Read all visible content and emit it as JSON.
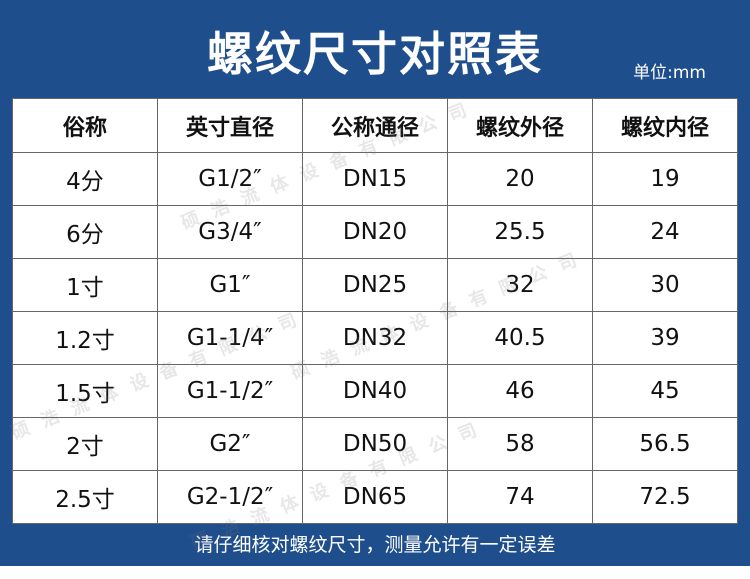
{
  "header": {
    "title": "螺纹尺寸对照表",
    "unit": "单位:mm"
  },
  "table": {
    "columns": [
      "俗称",
      "英寸直径",
      "公称通径",
      "螺纹外径",
      "螺纹内径"
    ],
    "rows": [
      [
        "4分",
        "G1/2″",
        "DN15",
        "20",
        "19"
      ],
      [
        "6分",
        "G3/4″",
        "DN20",
        "25.5",
        "24"
      ],
      [
        "1寸",
        "G1″",
        "DN25",
        "32",
        "30"
      ],
      [
        "1.2寸",
        "G1-1/4″",
        "DN32",
        "40.5",
        "39"
      ],
      [
        "1.5寸",
        "G1-1/2″",
        "DN40",
        "46",
        "45"
      ],
      [
        "2寸",
        "G2″",
        "DN50",
        "58",
        "56.5"
      ],
      [
        "2.5寸",
        "G2-1/2″",
        "DN65",
        "74",
        "72.5"
      ]
    ]
  },
  "watermark": "硕浩流体设备有限公司",
  "footer": "请仔细核对螺纹尺寸，测量允许有一定误差"
}
